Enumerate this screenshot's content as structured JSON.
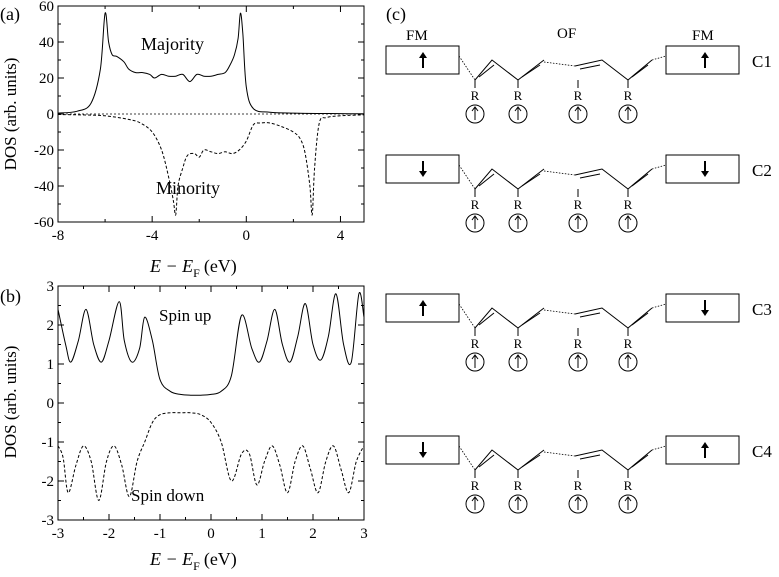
{
  "panel_a": {
    "label": "(a)",
    "ylabel": "DOS (arb. units)",
    "xlabel_main": "E − E",
    "xlabel_sub": "F",
    "xlabel_unit": "(eV)",
    "x_ticks": [
      "-8",
      "-4",
      "0",
      "4"
    ],
    "y_ticks": [
      "60",
      "40",
      "20",
      "0",
      "-20",
      "-40",
      "-60"
    ],
    "annotation_top": "Majority",
    "annotation_bottom": "Minority"
  },
  "panel_b": {
    "label": "(b)",
    "ylabel": "DOS (arb. units)",
    "xlabel_main": "E − E",
    "xlabel_sub": "F",
    "xlabel_unit": "(eV)",
    "x_ticks": [
      "-3",
      "-2",
      "-1",
      "0",
      "1",
      "2",
      "3"
    ],
    "y_ticks": [
      "3",
      "2",
      "1",
      "0",
      "-1",
      "-2",
      "-3"
    ],
    "annotation_top": "Spin up",
    "annotation_bottom": "Spin down"
  },
  "panel_c": {
    "label": "(c)",
    "fm_label": "FM",
    "of_label": "OF",
    "r_label": "R",
    "configs": [
      {
        "name": "C1",
        "left_spin": "up",
        "right_spin": "up"
      },
      {
        "name": "C2",
        "left_spin": "down",
        "right_spin": "down"
      },
      {
        "name": "C3",
        "left_spin": "up",
        "right_spin": "down"
      },
      {
        "name": "C4",
        "left_spin": "down",
        "right_spin": "up"
      }
    ]
  },
  "chart_data": [
    {
      "type": "line",
      "xlim": [
        -8,
        5
      ],
      "ylim": [
        -60,
        60
      ],
      "series": [
        {
          "name": "Majority",
          "style": "solid",
          "x": [
            -8,
            -7.2,
            -6.6,
            -6.2,
            -6.0,
            -5.85,
            -5.7,
            -5.5,
            -5.2,
            -5.0,
            -4.7,
            -4.4,
            -4.1,
            -3.9,
            -3.6,
            -3.3,
            -3.0,
            -2.7,
            -2.4,
            -2.1,
            -1.8,
            -1.5,
            -1.2,
            -0.9,
            -0.7,
            -0.5,
            -0.35,
            -0.25,
            -0.15,
            0.0,
            0.3,
            1,
            2,
            3,
            4,
            5
          ],
          "y": [
            0.5,
            1.5,
            6,
            25,
            56,
            40,
            33,
            32,
            29,
            25,
            23,
            23,
            22,
            20,
            22,
            21,
            21,
            22,
            18,
            22,
            21,
            21,
            22,
            23,
            27,
            33,
            42,
            56,
            45,
            15,
            3,
            1,
            0.5,
            0.3,
            0.2,
            0.1
          ]
        },
        {
          "name": "Minority",
          "style": "dashed",
          "x": [
            -8,
            -7,
            -6,
            -5,
            -4.5,
            -4,
            -3.6,
            -3.3,
            -3.1,
            -3.0,
            -2.9,
            -2.7,
            -2.5,
            -2.2,
            -2.0,
            -1.8,
            -1.5,
            -1.2,
            -0.9,
            -0.6,
            -0.3,
            0,
            0.3,
            0.6,
            1.0,
            1.5,
            2.0,
            2.3,
            2.5,
            2.7,
            2.8,
            2.9,
            3.1,
            3.4,
            4,
            5
          ],
          "y": [
            -0.3,
            -0.5,
            -1,
            -3,
            -5,
            -10,
            -20,
            -35,
            -48,
            -56,
            -40,
            -30,
            -23,
            -22,
            -24,
            -20,
            -21,
            -22,
            -21,
            -22,
            -20,
            -15,
            -6,
            -5,
            -5,
            -7,
            -10,
            -14,
            -22,
            -40,
            -56,
            -30,
            -5,
            -2,
            -1,
            -0.5
          ]
        }
      ]
    },
    {
      "type": "line",
      "xlim": [
        -3,
        3
      ],
      "ylim": [
        -3,
        3
      ],
      "series": [
        {
          "name": "Spin up",
          "style": "solid",
          "x": [
            -3,
            -2.85,
            -2.75,
            -2.6,
            -2.45,
            -2.3,
            -2.15,
            -2.0,
            -1.8,
            -1.7,
            -1.55,
            -1.4,
            -1.3,
            -1.15,
            -1.0,
            -0.8,
            -0.6,
            -0.4,
            -0.2,
            0,
            0.2,
            0.4,
            0.6,
            0.8,
            0.95,
            1.1,
            1.25,
            1.4,
            1.55,
            1.7,
            1.85,
            2.0,
            2.15,
            2.3,
            2.45,
            2.6,
            2.75,
            2.9,
            3
          ],
          "y": [
            2.4,
            1.5,
            1.05,
            1.6,
            2.4,
            1.5,
            1.05,
            1.6,
            2.6,
            1.6,
            1.05,
            1.4,
            2.2,
            1.6,
            0.6,
            0.3,
            0.22,
            0.2,
            0.2,
            0.22,
            0.3,
            0.7,
            2.25,
            1.4,
            1.05,
            1.6,
            2.4,
            1.5,
            1.05,
            1.7,
            2.55,
            1.5,
            1.1,
            1.7,
            2.8,
            1.5,
            1.05,
            2.8,
            2.2
          ]
        },
        {
          "name": "Spin down",
          "style": "dashed",
          "x": [
            -3,
            -2.9,
            -2.8,
            -2.65,
            -2.5,
            -2.35,
            -2.2,
            -2.05,
            -1.9,
            -1.75,
            -1.6,
            -1.45,
            -1.3,
            -1.15,
            -1.0,
            -0.8,
            -0.6,
            -0.4,
            -0.2,
            0,
            0.2,
            0.4,
            0.6,
            0.75,
            0.9,
            1.05,
            1.2,
            1.35,
            1.5,
            1.65,
            1.8,
            1.95,
            2.1,
            2.25,
            2.4,
            2.55,
            2.7,
            2.85,
            3
          ],
          "y": [
            -1.1,
            -1.4,
            -2.3,
            -1.6,
            -1.1,
            -1.5,
            -2.5,
            -1.5,
            -1.1,
            -1.6,
            -2.4,
            -1.5,
            -1.0,
            -0.5,
            -0.3,
            -0.25,
            -0.25,
            -0.25,
            -0.3,
            -0.5,
            -1.0,
            -2.0,
            -1.3,
            -1.3,
            -2.1,
            -1.5,
            -1.1,
            -1.6,
            -2.3,
            -1.5,
            -1.1,
            -1.7,
            -2.3,
            -1.5,
            -1.1,
            -1.7,
            -2.3,
            -1.5,
            -1.1
          ]
        }
      ]
    }
  ]
}
